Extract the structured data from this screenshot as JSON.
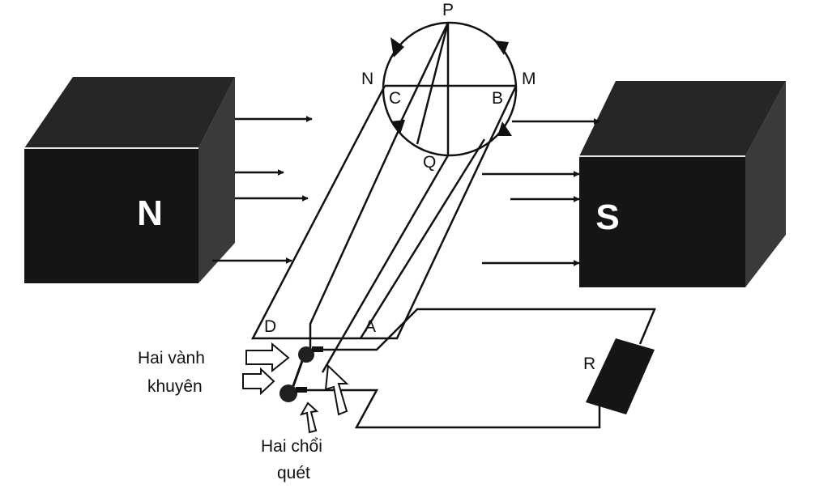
{
  "magnets": {
    "north": {
      "label": "N"
    },
    "south": {
      "label": "S"
    }
  },
  "points": {
    "P": "P",
    "N": "N",
    "M": "M",
    "C": "C",
    "B": "B",
    "Q": "Q",
    "D": "D",
    "A": "A"
  },
  "resistor": {
    "label": "R"
  },
  "captions": {
    "rings_line1": "Hai vành",
    "rings_line2": "khuyên",
    "brushes_line1": "Hai chổi",
    "brushes_line2": "quét"
  },
  "colors": {
    "magnet_face": "#151515",
    "magnet_side": "#3a3a3a",
    "magnet_top": "#262626",
    "line": "#111111"
  }
}
